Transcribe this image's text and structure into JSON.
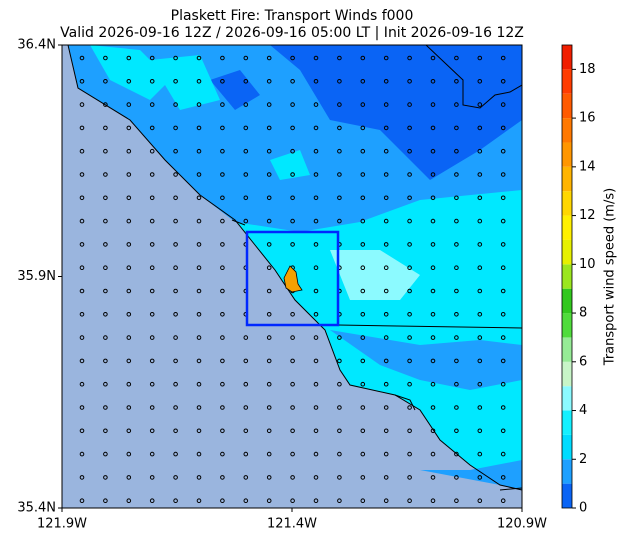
{
  "chart_data": {
    "type": "map",
    "title": "Plaskett Fire: Transport Winds f000",
    "subtitle": "Valid 2026-09-16 12Z / 2026-09-16 05:00 LT | Init 2026-09-16 12Z",
    "xlim": [
      -121.9,
      -120.9
    ],
    "xticks": [
      {
        "value": -121.9,
        "label": "121.9W"
      },
      {
        "value": -121.4,
        "label": "121.4W"
      },
      {
        "value": -120.9,
        "label": "120.9W"
      }
    ],
    "ylim": [
      35.4,
      36.4
    ],
    "yticks": [
      {
        "value": 35.4,
        "label": "35.4N"
      },
      {
        "value": 35.9,
        "label": "35.9N"
      },
      {
        "value": 36.4,
        "label": "36.4N"
      }
    ],
    "colorbar": {
      "label": "Transport wind speed (m/s)",
      "lim": [
        0,
        19
      ],
      "ticks": [
        0,
        2,
        4,
        6,
        8,
        10,
        12,
        14,
        16,
        18
      ],
      "levels": [
        0,
        1,
        2,
        3,
        4,
        5,
        6,
        7,
        8,
        9,
        10,
        11,
        12,
        13,
        14,
        15,
        16,
        17,
        18,
        19
      ],
      "colors": [
        "#0a64f5",
        "#1ea0ff",
        "#00dcff",
        "#14f0ff",
        "#8cfaff",
        "#c8f5c8",
        "#96eb96",
        "#50dc3c",
        "#32c81e",
        "#9be61e",
        "#e6f000",
        "#fff000",
        "#ffd700",
        "#ffb400",
        "#ff9600",
        "#ff7800",
        "#ff5a00",
        "#ff3c00",
        "#f01e00"
      ]
    }
  }
}
